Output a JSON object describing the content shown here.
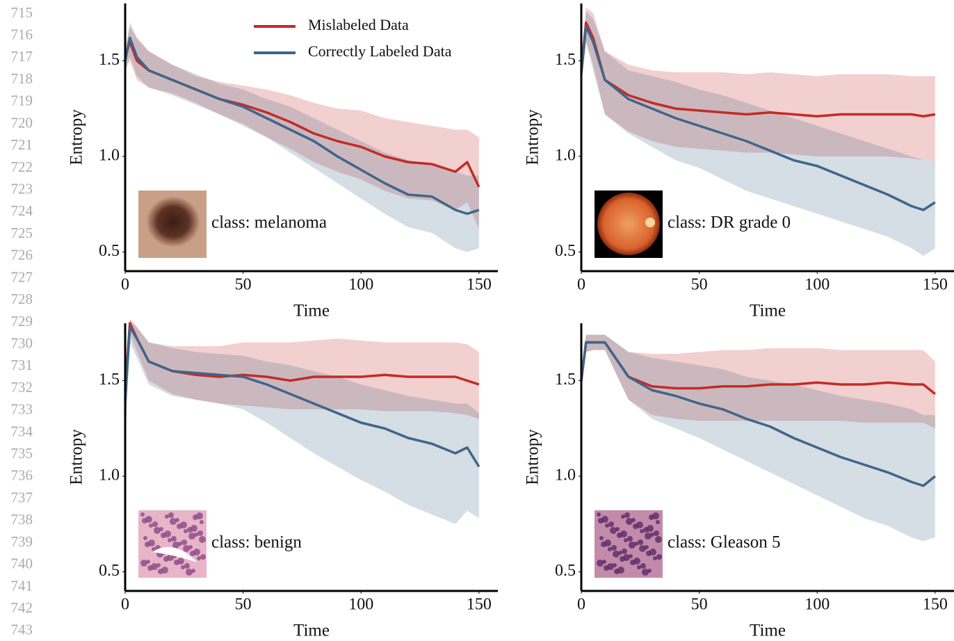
{
  "line_numbers": [
    "715",
    "716",
    "717",
    "718",
    "719",
    "720",
    "721",
    "722",
    "723",
    "724",
    "725",
    "726",
    "727",
    "728",
    "729",
    "730",
    "731",
    "732",
    "733",
    "734",
    "735",
    "736",
    "737",
    "738",
    "739",
    "740",
    "741",
    "742",
    "743"
  ],
  "chart_data": [
    {
      "type": "line",
      "xlabel": "Time",
      "ylabel": "Entropy",
      "annotation": "class: melanoma",
      "legend": "upper center",
      "xlim": [
        0,
        158
      ],
      "ylim": [
        0.4,
        1.8
      ],
      "xticks": [
        0,
        50,
        100,
        150
      ],
      "yticks": [
        0.5,
        {
          "value": 1,
          "label": "1.0"
        },
        1.5
      ],
      "x": [
        0,
        2,
        5,
        10,
        20,
        30,
        40,
        50,
        60,
        70,
        80,
        90,
        100,
        110,
        120,
        130,
        140,
        145,
        150
      ],
      "series": [
        {
          "name": "Mislabeled Data",
          "color": "#c42b26",
          "values": [
            1.52,
            1.6,
            1.5,
            1.45,
            1.4,
            1.35,
            1.3,
            1.27,
            1.23,
            1.18,
            1.12,
            1.08,
            1.05,
            1.0,
            0.97,
            0.96,
            0.92,
            0.97,
            0.84
          ],
          "upper": [
            1.55,
            1.68,
            1.62,
            1.55,
            1.48,
            1.42,
            1.39,
            1.37,
            1.35,
            1.32,
            1.28,
            1.25,
            1.24,
            1.2,
            1.18,
            1.16,
            1.14,
            1.14,
            1.1
          ],
          "lower": [
            1.45,
            1.5,
            1.4,
            1.36,
            1.33,
            1.28,
            1.22,
            1.17,
            1.1,
            1.04,
            0.97,
            0.92,
            0.88,
            0.82,
            0.78,
            0.77,
            0.72,
            0.76,
            0.62
          ]
        },
        {
          "name": "Correctly Labeled Data",
          "color": "#3f6689",
          "values": [
            1.5,
            1.62,
            1.52,
            1.45,
            1.4,
            1.35,
            1.3,
            1.26,
            1.2,
            1.14,
            1.08,
            1.0,
            0.93,
            0.86,
            0.8,
            0.79,
            0.72,
            0.7,
            0.72
          ],
          "upper": [
            1.55,
            1.7,
            1.62,
            1.55,
            1.48,
            1.43,
            1.38,
            1.35,
            1.3,
            1.26,
            1.2,
            1.14,
            1.08,
            1.02,
            0.98,
            0.96,
            0.92,
            0.9,
            0.9
          ],
          "lower": [
            1.45,
            1.52,
            1.42,
            1.36,
            1.32,
            1.27,
            1.22,
            1.16,
            1.1,
            1.02,
            0.94,
            0.86,
            0.78,
            0.7,
            0.63,
            0.6,
            0.52,
            0.5,
            0.52
          ]
        }
      ]
    },
    {
      "type": "line",
      "xlabel": "Time",
      "ylabel": "Entropy",
      "annotation": "class: DR grade 0",
      "xlim": [
        0,
        158
      ],
      "ylim": [
        0.4,
        1.8
      ],
      "xticks": [
        0,
        50,
        100,
        150
      ],
      "yticks": [
        0.5,
        {
          "value": 1,
          "label": "1.0"
        },
        1.5
      ],
      "x": [
        0,
        2,
        5,
        10,
        20,
        30,
        40,
        50,
        60,
        70,
        80,
        90,
        100,
        110,
        120,
        130,
        140,
        145,
        150
      ],
      "series": [
        {
          "color": "#c42b26",
          "values": [
            1.45,
            1.7,
            1.62,
            1.4,
            1.32,
            1.28,
            1.25,
            1.24,
            1.23,
            1.22,
            1.23,
            1.22,
            1.21,
            1.22,
            1.22,
            1.22,
            1.22,
            1.21,
            1.22
          ],
          "upper": [
            1.5,
            1.78,
            1.75,
            1.55,
            1.48,
            1.45,
            1.44,
            1.44,
            1.44,
            1.43,
            1.44,
            1.43,
            1.42,
            1.43,
            1.43,
            1.43,
            1.42,
            1.42,
            1.42
          ],
          "lower": [
            1.4,
            1.6,
            1.48,
            1.22,
            1.13,
            1.08,
            1.05,
            1.04,
            1.03,
            1.02,
            1.02,
            1.01,
            1.0,
            1.0,
            1.0,
            1.0,
            0.99,
            0.98,
            0.98
          ]
        },
        {
          "color": "#3f6689",
          "values": [
            1.43,
            1.68,
            1.6,
            1.4,
            1.3,
            1.25,
            1.2,
            1.16,
            1.12,
            1.08,
            1.03,
            0.98,
            0.95,
            0.9,
            0.85,
            0.8,
            0.74,
            0.72,
            0.76
          ],
          "upper": [
            1.48,
            1.76,
            1.72,
            1.55,
            1.45,
            1.42,
            1.39,
            1.35,
            1.32,
            1.28,
            1.24,
            1.2,
            1.16,
            1.12,
            1.08,
            1.04,
            1.0,
            0.98,
            0.98
          ],
          "lower": [
            1.38,
            1.6,
            1.45,
            1.22,
            1.12,
            1.05,
            0.98,
            0.94,
            0.88,
            0.82,
            0.78,
            0.74,
            0.7,
            0.66,
            0.62,
            0.58,
            0.52,
            0.48,
            0.52
          ]
        }
      ]
    },
    {
      "type": "line",
      "xlabel": "Time",
      "ylabel": "Entropy",
      "annotation": "class: benign",
      "xlim": [
        0,
        158
      ],
      "ylim": [
        0.4,
        1.8
      ],
      "xticks": [
        0,
        50,
        100,
        150
      ],
      "yticks": [
        0.5,
        {
          "value": 1,
          "label": "1.0"
        },
        1.5
      ],
      "x": [
        0,
        2,
        5,
        10,
        20,
        30,
        40,
        50,
        60,
        70,
        80,
        90,
        100,
        110,
        120,
        130,
        140,
        145,
        150
      ],
      "series": [
        {
          "color": "#c42b26",
          "values": [
            1.45,
            1.8,
            1.72,
            1.6,
            1.55,
            1.53,
            1.52,
            1.53,
            1.52,
            1.5,
            1.52,
            1.52,
            1.52,
            1.53,
            1.52,
            1.52,
            1.52,
            1.5,
            1.48
          ],
          "upper": [
            1.55,
            1.82,
            1.78,
            1.7,
            1.68,
            1.68,
            1.68,
            1.7,
            1.7,
            1.7,
            1.71,
            1.72,
            1.71,
            1.7,
            1.7,
            1.7,
            1.7,
            1.69,
            1.65
          ],
          "lower": [
            1.2,
            1.75,
            1.65,
            1.5,
            1.43,
            1.4,
            1.38,
            1.37,
            1.36,
            1.35,
            1.35,
            1.35,
            1.35,
            1.34,
            1.34,
            1.34,
            1.33,
            1.32,
            1.3
          ]
        },
        {
          "color": "#3f6689",
          "values": [
            1.4,
            1.78,
            1.72,
            1.6,
            1.55,
            1.54,
            1.53,
            1.52,
            1.48,
            1.43,
            1.38,
            1.33,
            1.28,
            1.25,
            1.2,
            1.17,
            1.12,
            1.15,
            1.05
          ],
          "upper": [
            1.55,
            1.82,
            1.78,
            1.7,
            1.67,
            1.65,
            1.64,
            1.63,
            1.6,
            1.58,
            1.55,
            1.52,
            1.48,
            1.45,
            1.42,
            1.4,
            1.38,
            1.38,
            1.33
          ],
          "lower": [
            1.15,
            1.7,
            1.62,
            1.48,
            1.42,
            1.4,
            1.38,
            1.35,
            1.28,
            1.2,
            1.12,
            1.05,
            0.98,
            0.92,
            0.85,
            0.8,
            0.75,
            0.82,
            0.78
          ]
        }
      ]
    },
    {
      "type": "line",
      "xlabel": "Time",
      "ylabel": "Entropy",
      "annotation": "class: Gleason 5",
      "xlim": [
        0,
        158
      ],
      "ylim": [
        0.4,
        1.8
      ],
      "xticks": [
        0,
        50,
        100,
        150
      ],
      "yticks": [
        0.5,
        {
          "value": 1,
          "label": "1.0"
        },
        1.5
      ],
      "x": [
        0,
        2,
        5,
        10,
        20,
        30,
        40,
        50,
        60,
        70,
        80,
        90,
        100,
        110,
        120,
        130,
        140,
        145,
        150
      ],
      "series": [
        {
          "color": "#c42b26",
          "values": [
            1.5,
            1.7,
            1.7,
            1.7,
            1.52,
            1.47,
            1.46,
            1.46,
            1.47,
            1.47,
            1.48,
            1.48,
            1.49,
            1.48,
            1.48,
            1.49,
            1.48,
            1.48,
            1.43
          ],
          "upper": [
            1.55,
            1.74,
            1.74,
            1.74,
            1.65,
            1.64,
            1.64,
            1.65,
            1.66,
            1.66,
            1.67,
            1.67,
            1.67,
            1.66,
            1.66,
            1.66,
            1.66,
            1.66,
            1.6
          ],
          "lower": [
            1.45,
            1.65,
            1.66,
            1.66,
            1.4,
            1.32,
            1.3,
            1.29,
            1.29,
            1.29,
            1.29,
            1.29,
            1.29,
            1.29,
            1.28,
            1.28,
            1.28,
            1.28,
            1.25
          ]
        },
        {
          "color": "#3f6689",
          "values": [
            1.5,
            1.7,
            1.7,
            1.7,
            1.52,
            1.45,
            1.42,
            1.38,
            1.35,
            1.3,
            1.26,
            1.2,
            1.15,
            1.1,
            1.06,
            1.02,
            0.97,
            0.95,
            1.0
          ],
          "upper": [
            1.55,
            1.74,
            1.74,
            1.74,
            1.65,
            1.62,
            1.6,
            1.58,
            1.56,
            1.52,
            1.5,
            1.48,
            1.45,
            1.42,
            1.4,
            1.38,
            1.35,
            1.32,
            1.32
          ],
          "lower": [
            1.45,
            1.65,
            1.66,
            1.66,
            1.4,
            1.3,
            1.25,
            1.2,
            1.14,
            1.08,
            1.02,
            0.96,
            0.9,
            0.84,
            0.78,
            0.74,
            0.68,
            0.66,
            0.68
          ]
        }
      ]
    }
  ]
}
